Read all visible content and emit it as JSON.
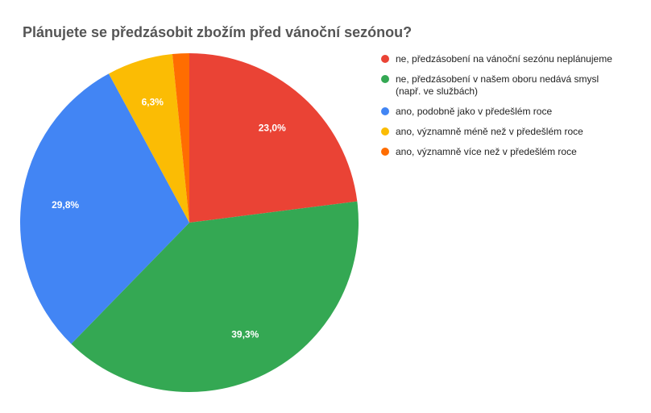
{
  "chart_data": {
    "type": "pie",
    "title": "Plánujete se předzásobit zbožím před vánoční sezónou?",
    "categories": [
      "ne, předzásobení na vánoční sezónu neplánujeme",
      "ne, předzásobení v našem oboru nedává smysl (např. ve službách)",
      "ano, podobně jako v předešlém roce",
      "ano, významně méně než v předešlém roce",
      "ano, významně více než v předešlém roce"
    ],
    "values": [
      23.0,
      39.3,
      29.8,
      6.3,
      1.6
    ],
    "value_labels": [
      "23,0%",
      "39,3%",
      "29,8%",
      "6,3%",
      null
    ],
    "colors": [
      "#ea4335",
      "#34a853",
      "#4285f4",
      "#fbbc04",
      "#ff6d01"
    ]
  }
}
